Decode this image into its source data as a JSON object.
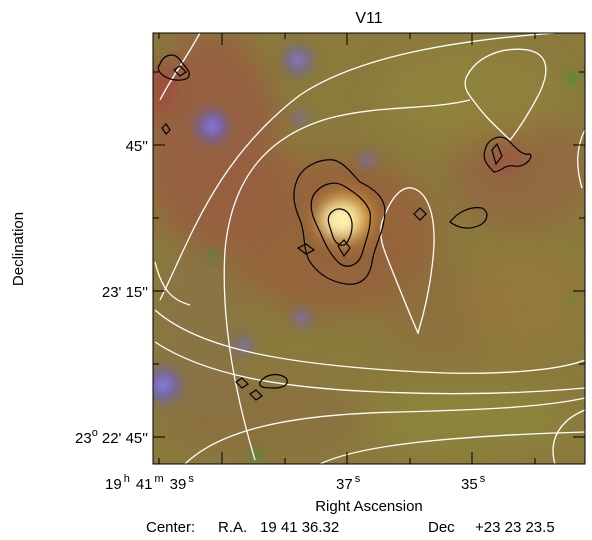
{
  "figure": {
    "title": "V11",
    "xlabel": "Right Ascension",
    "ylabel": "Declination",
    "center": {
      "prefix": "Center:",
      "ra_label": "R.A.",
      "ra_value": "19 41 36.32",
      "dec_label": "Dec",
      "dec_value": "+23 23 23.5"
    },
    "ra_ticks": [
      {
        "h": "19",
        "hu": "h",
        "m": "41",
        "mu": "m",
        "s": "39",
        "su": "s"
      },
      {
        "s": "37",
        "su": "s"
      },
      {
        "s": "35",
        "su": "s"
      }
    ],
    "dec_ticks": [
      {
        "text": "45''"
      },
      {
        "text": "23' 15''"
      },
      {
        "d": "23",
        "du": "o",
        "rest": "22' 45''"
      }
    ],
    "contours": {
      "white": "#ffffff",
      "black": "#000000"
    },
    "background_color": "#8a7a3c"
  }
}
